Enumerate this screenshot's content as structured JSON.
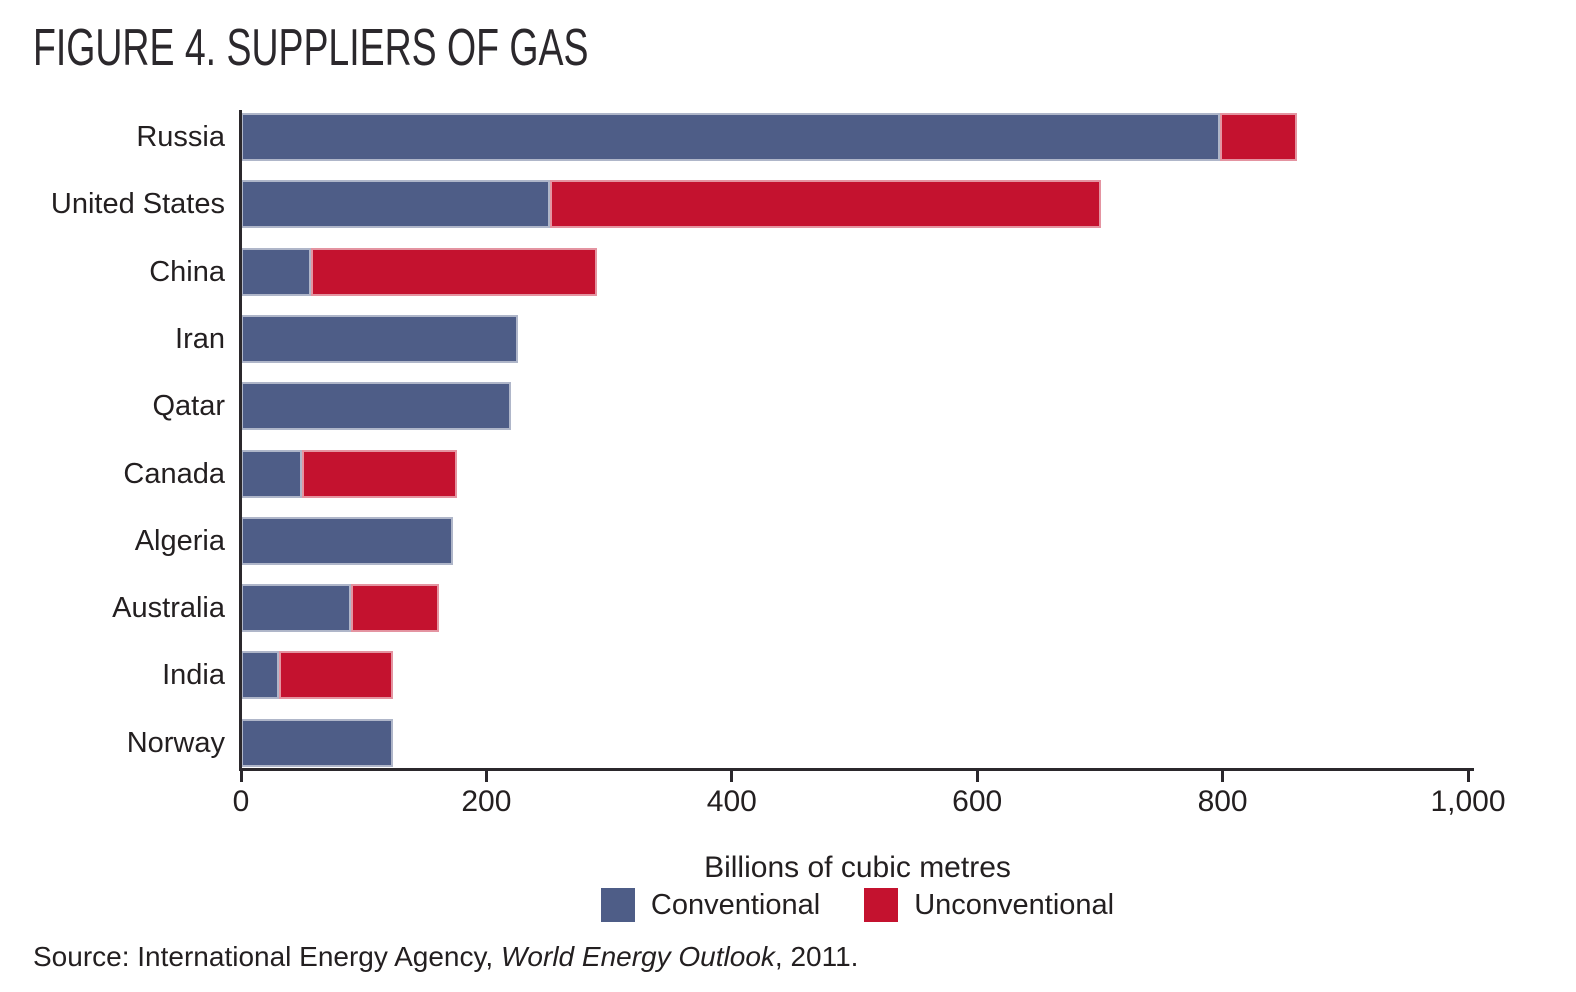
{
  "source": {
    "prefix": "Source: International Energy Agency, ",
    "work": "World Energy Outlook",
    "suffix": ", 2011."
  },
  "chart_data": {
    "type": "bar",
    "orientation": "horizontal",
    "stacked": true,
    "title": "FIGURE 4. SUPPLIERS OF GAS",
    "xlabel": "Billions of cubic metres",
    "ylabel": "",
    "xlim": [
      0,
      1000
    ],
    "xticks": [
      0,
      200,
      400,
      600,
      800,
      1000
    ],
    "xtick_labels": [
      "0",
      "200",
      "400",
      "600",
      "800",
      "1,000"
    ],
    "grid": false,
    "legend_position": "bottom",
    "categories": [
      "Russia",
      "United States",
      "China",
      "Iran",
      "Qatar",
      "Canada",
      "Algeria",
      "Australia",
      "India",
      "Norway"
    ],
    "series": [
      {
        "name": "Conventional",
        "color": "#4E5D87",
        "values": [
          798,
          252,
          57,
          226,
          220,
          50,
          173,
          90,
          31,
          124
        ]
      },
      {
        "name": "Unconventional",
        "color": "#C4122F",
        "values": [
          63,
          449,
          233,
          0,
          0,
          126,
          0,
          71,
          93,
          0
        ]
      }
    ],
    "totals": [
      861,
      701,
      290,
      226,
      220,
      176,
      173,
      161,
      124,
      124
    ]
  }
}
